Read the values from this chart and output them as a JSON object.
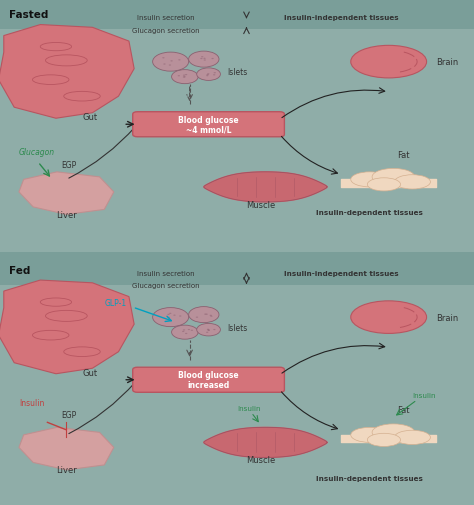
{
  "bg_color": "#8fada8",
  "panel_bg": "#c5d9d6",
  "header_bg": "#7a9e99",
  "header_text_color": "#1a1a1a",
  "organ_color": "#d4737a",
  "organ_edge": "#b85560",
  "liver_color": "#d4a0a0",
  "vessel_color": "#d4737a",
  "islet_color": "#b8909a",
  "brain_color": "#d4737a",
  "muscle_color": "#c86870",
  "fat_color": "#f0d8c0",
  "glucagon_color": "#2d8a4e",
  "insulin_color": "#2d8a4e",
  "glp1_color": "#00a0c0",
  "arrow_color": "#333333",
  "text_color": "#333333",
  "bold_text": "#1a1a1a",
  "title1": "Fasted",
  "title2": "Fed",
  "panel1_labels": {
    "gut": "Gut",
    "glucagon": "Glucagon",
    "egp": "EGP",
    "liver": "Liver",
    "islets": "Islets",
    "blood_glucose": "Blood glucose\n~4 mmol/L",
    "muscle": "Muscle",
    "brain": "Brain",
    "fat": "Fat",
    "insulin_secretion": "Insulin secretion",
    "glucagon_secretion": "Glucagon secretion",
    "insulin_independent": "Insulin-independent tissues",
    "insulin_dependent": "Insulin-dependent tissues"
  },
  "panel2_labels": {
    "gut": "Gut",
    "glp1": "GLP-1",
    "insulin": "Insulin",
    "egp": "EGP",
    "liver": "Liver",
    "islets": "Islets",
    "blood_glucose": "Blood glucose\nincreased",
    "muscle": "Muscle",
    "brain": "Brain",
    "fat": "Fat",
    "insulin_label1": "Insulin",
    "insulin_label2": "Insulin",
    "insulin_secretion": "Insulin secretion",
    "glucagon_secretion": "Glucagon secretion",
    "insulin_independent": "Insulin-independent tissues",
    "insulin_dependent": "Insulin-dependent tissues"
  }
}
